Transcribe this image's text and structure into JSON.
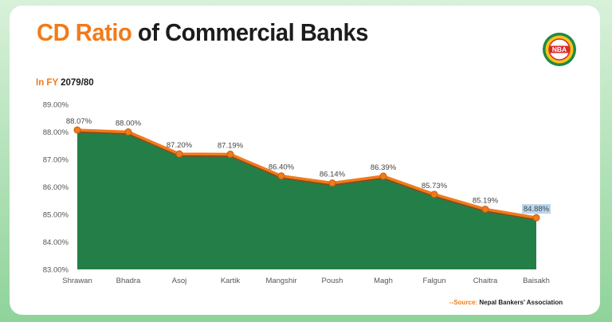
{
  "title": {
    "highlight": "CD Ratio",
    "rest": "of Commercial Banks"
  },
  "subtitle": {
    "highlight": "In FY",
    "rest": "2079/80"
  },
  "logo": {
    "text": "NBA",
    "icon": "nepal-bankers-association-logo"
  },
  "source": {
    "label": "--Source:",
    "value": "Nepal Bankers' Association"
  },
  "colors": {
    "accent": "#f07b1c",
    "area_fill": "#237f47",
    "line": "#f07b1c",
    "background_top": "#d8f1d9",
    "background_bottom": "#8fd39a"
  },
  "chart_data": {
    "type": "area",
    "title": "CD Ratio of Commercial Banks",
    "categories": [
      "Shrawan",
      "Bhadra",
      "Asoj",
      "Kartik",
      "Mangshir",
      "Poush",
      "Magh",
      "Falgun",
      "Chaitra",
      "Baisakh"
    ],
    "values": [
      88.07,
      88.0,
      87.2,
      87.19,
      86.4,
      86.14,
      86.39,
      85.73,
      85.19,
      84.88
    ],
    "data_labels": [
      "88.07%",
      "88.00%",
      "87.20%",
      "87.19%",
      "86.40%",
      "86.14%",
      "86.39%",
      "85.73%",
      "85.19%",
      "84.88%"
    ],
    "y_ticks": [
      83,
      84,
      85,
      86,
      87,
      88,
      89
    ],
    "y_tick_labels": [
      "83.00%",
      "84.00%",
      "85.00%",
      "86.00%",
      "87.00%",
      "88.00%",
      "89.00%"
    ],
    "ylim": [
      83,
      89
    ],
    "xlabel": "",
    "ylabel": "",
    "grid": false,
    "legend": "none",
    "highlighted_label": "Baisakh"
  }
}
